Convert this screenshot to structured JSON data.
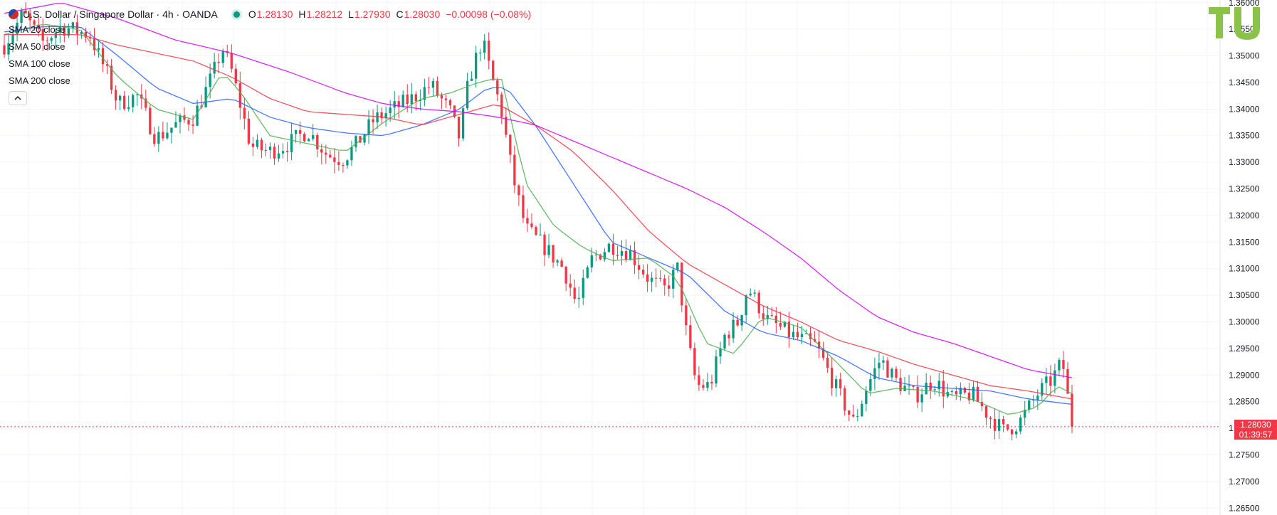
{
  "header": {
    "symbol_title": "U.S. Dollar / Singapore Dollar · 4h · OANDA",
    "ohlc": {
      "open_label": "O",
      "open": "1.28130",
      "high_label": "H",
      "high": "1.28212",
      "low_label": "L",
      "low": "1.27930",
      "close_label": "C",
      "close": "1.28030",
      "change": "−0.00098 (−0.08%)"
    }
  },
  "indicators": [
    {
      "label": "SMA 20 close",
      "color": "#4caf50"
    },
    {
      "label": "SMA 50 close",
      "color": "#2962ff"
    },
    {
      "label": "SMA 100 close",
      "color": "#f23645"
    },
    {
      "label": "SMA 200 close",
      "color": "#d500f9"
    }
  ],
  "price_tag": {
    "price": "1.28030",
    "countdown": "01:39:57"
  },
  "colors": {
    "up": "#089981",
    "down": "#f23645",
    "grid": "#f0f3fa",
    "axis_text": "#131722",
    "logo": "#8bc34a"
  },
  "icons": {
    "collapse": "chevron-up-icon",
    "logo": "tradingview-logo",
    "flag": "usd-sgd-flag-icon"
  },
  "chart_data": {
    "type": "candlestick",
    "title": "U.S. Dollar / Singapore Dollar · 4h · OANDA",
    "timeframe": "4h",
    "y_ticks": [
      "1.36000",
      "1.35500",
      "1.35000",
      "1.34500",
      "1.34000",
      "1.33500",
      "1.33000",
      "1.32500",
      "1.32000",
      "1.31500",
      "1.31000",
      "1.30500",
      "1.30000",
      "1.29500",
      "1.29000",
      "1.28500",
      "1.28000",
      "1.27500",
      "1.27000",
      "1.26500"
    ],
    "ylim": [
      1.2645,
      1.3605
    ],
    "last_price": 1.2803,
    "grid": true,
    "candle_count": 250,
    "price_path": [
      [
        0,
        1.352
      ],
      [
        10,
        1.358
      ],
      [
        20,
        1.3525
      ],
      [
        30,
        1.3555
      ],
      [
        45,
        1.354
      ],
      [
        55,
        1.346
      ],
      [
        60,
        1.341
      ],
      [
        70,
        1.3425
      ],
      [
        80,
        1.3345
      ],
      [
        90,
        1.337
      ],
      [
        100,
        1.3385
      ],
      [
        110,
        1.3465
      ],
      [
        115,
        1.3515
      ],
      [
        120,
        1.347
      ],
      [
        130,
        1.333
      ],
      [
        140,
        1.332
      ],
      [
        150,
        1.3335
      ],
      [
        160,
        1.336
      ],
      [
        170,
        1.3315
      ],
      [
        178,
        1.3305
      ],
      [
        185,
        1.333
      ],
      [
        195,
        1.338
      ],
      [
        205,
        1.34
      ],
      [
        215,
        1.342
      ],
      [
        225,
        1.3445
      ],
      [
        235,
        1.3395
      ],
      [
        240,
        1.3345
      ],
      [
        245,
        1.3455
      ],
      [
        252,
        1.353
      ],
      [
        257,
        1.346
      ],
      [
        262,
        1.34
      ],
      [
        268,
        1.3275
      ],
      [
        275,
        1.3175
      ],
      [
        285,
        1.314
      ],
      [
        295,
        1.31
      ],
      [
        302,
        1.303
      ],
      [
        310,
        1.312
      ],
      [
        320,
        1.3145
      ],
      [
        330,
        1.313
      ],
      [
        340,
        1.308
      ],
      [
        348,
        1.306
      ],
      [
        355,
        1.31
      ],
      [
        360,
        1.297
      ],
      [
        365,
        1.288
      ],
      [
        372,
        1.288
      ],
      [
        380,
        1.2975
      ],
      [
        387,
        1.3
      ],
      [
        392,
        1.3065
      ],
      [
        402,
        1.3005
      ],
      [
        415,
        1.2975
      ],
      [
        428,
        1.2955
      ],
      [
        438,
        1.288
      ],
      [
        448,
        1.281
      ],
      [
        455,
        1.288
      ],
      [
        462,
        1.293
      ],
      [
        470,
        1.289
      ],
      [
        480,
        1.286
      ],
      [
        490,
        1.289
      ],
      [
        500,
        1.2855
      ],
      [
        510,
        1.2865
      ],
      [
        520,
        1.282
      ],
      [
        527,
        1.2795
      ],
      [
        535,
        1.281
      ],
      [
        545,
        1.2865
      ],
      [
        552,
        1.289
      ],
      [
        558,
        1.2925
      ],
      [
        563,
        1.2803
      ]
    ],
    "sma_20_path": [
      [
        0,
        1.354
      ],
      [
        20,
        1.356
      ],
      [
        40,
        1.355
      ],
      [
        60,
        1.346
      ],
      [
        80,
        1.34
      ],
      [
        100,
        1.338
      ],
      [
        115,
        1.347
      ],
      [
        125,
        1.343
      ],
      [
        140,
        1.335
      ],
      [
        160,
        1.3335
      ],
      [
        180,
        1.332
      ],
      [
        200,
        1.3375
      ],
      [
        220,
        1.342
      ],
      [
        235,
        1.343
      ],
      [
        250,
        1.345
      ],
      [
        262,
        1.346
      ],
      [
        275,
        1.326
      ],
      [
        290,
        1.318
      ],
      [
        305,
        1.314
      ],
      [
        320,
        1.3115
      ],
      [
        340,
        1.312
      ],
      [
        355,
        1.308
      ],
      [
        370,
        1.296
      ],
      [
        385,
        1.294
      ],
      [
        400,
        1.301
      ],
      [
        420,
        1.299
      ],
      [
        440,
        1.292
      ],
      [
        455,
        1.2865
      ],
      [
        470,
        1.2875
      ],
      [
        490,
        1.287
      ],
      [
        510,
        1.2855
      ],
      [
        530,
        1.2825
      ],
      [
        545,
        1.284
      ],
      [
        555,
        1.288
      ],
      [
        563,
        1.2865
      ]
    ],
    "sma_50_path": [
      [
        0,
        1.3545
      ],
      [
        20,
        1.3555
      ],
      [
        40,
        1.3555
      ],
      [
        60,
        1.35
      ],
      [
        80,
        1.344
      ],
      [
        100,
        1.341
      ],
      [
        120,
        1.342
      ],
      [
        140,
        1.3385
      ],
      [
        160,
        1.3365
      ],
      [
        180,
        1.3355
      ],
      [
        200,
        1.335
      ],
      [
        220,
        1.337
      ],
      [
        240,
        1.34
      ],
      [
        255,
        1.344
      ],
      [
        265,
        1.344
      ],
      [
        280,
        1.337
      ],
      [
        300,
        1.326
      ],
      [
        320,
        1.315
      ],
      [
        340,
        1.312
      ],
      [
        360,
        1.309
      ],
      [
        380,
        1.302
      ],
      [
        400,
        1.298
      ],
      [
        420,
        1.2965
      ],
      [
        440,
        1.2935
      ],
      [
        460,
        1.2895
      ],
      [
        480,
        1.288
      ],
      [
        500,
        1.2875
      ],
      [
        520,
        1.287
      ],
      [
        540,
        1.2855
      ],
      [
        563,
        1.2845
      ]
    ],
    "sma_100_path": [
      [
        0,
        1.354
      ],
      [
        40,
        1.354
      ],
      [
        60,
        1.352
      ],
      [
        80,
        1.3505
      ],
      [
        100,
        1.349
      ],
      [
        120,
        1.346
      ],
      [
        140,
        1.342
      ],
      [
        160,
        1.3395
      ],
      [
        180,
        1.339
      ],
      [
        200,
        1.3385
      ],
      [
        220,
        1.337
      ],
      [
        240,
        1.339
      ],
      [
        260,
        1.341
      ],
      [
        280,
        1.337
      ],
      [
        300,
        1.332
      ],
      [
        320,
        1.325
      ],
      [
        340,
        1.317
      ],
      [
        360,
        1.311
      ],
      [
        380,
        1.307
      ],
      [
        400,
        1.303
      ],
      [
        420,
        1.3
      ],
      [
        440,
        1.2965
      ],
      [
        460,
        1.2945
      ],
      [
        480,
        1.292
      ],
      [
        500,
        1.29
      ],
      [
        520,
        1.288
      ],
      [
        540,
        1.287
      ],
      [
        563,
        1.2855
      ]
    ],
    "sma_200_path": [
      [
        0,
        1.358
      ],
      [
        30,
        1.36
      ],
      [
        60,
        1.357
      ],
      [
        90,
        1.353
      ],
      [
        120,
        1.3505
      ],
      [
        150,
        1.347
      ],
      [
        180,
        1.343
      ],
      [
        200,
        1.341
      ],
      [
        220,
        1.34
      ],
      [
        240,
        1.3395
      ],
      [
        260,
        1.3385
      ],
      [
        280,
        1.337
      ],
      [
        300,
        1.334
      ],
      [
        320,
        1.331
      ],
      [
        340,
        1.328
      ],
      [
        360,
        1.325
      ],
      [
        380,
        1.3215
      ],
      [
        400,
        1.317
      ],
      [
        420,
        1.312
      ],
      [
        440,
        1.306
      ],
      [
        460,
        1.301
      ],
      [
        480,
        1.298
      ],
      [
        500,
        1.296
      ],
      [
        520,
        1.2935
      ],
      [
        540,
        1.291
      ],
      [
        563,
        1.2895
      ]
    ]
  }
}
